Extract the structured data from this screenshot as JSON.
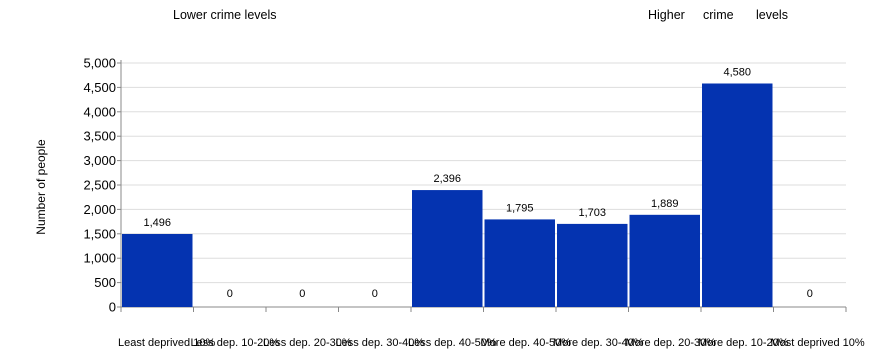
{
  "header": {
    "left_label": "Lower crime levels",
    "right_labels": [
      "Higher",
      "crime",
      "levels"
    ]
  },
  "chart_data": {
    "type": "bar",
    "ylabel": "Number of people",
    "xlabel": "",
    "ylim": [
      0,
      5000
    ],
    "yticks": [
      "0",
      "500",
      "1,000",
      "1,500",
      "2,000",
      "2,500",
      "3,000",
      "3,500",
      "4,000",
      "4,500",
      "5,000"
    ],
    "categories": [
      "Least deprived 10%",
      "Less dep. 10-20%",
      "Less dep. 20-30%",
      "Less dep. 30-40%",
      "Less dep. 40-50%",
      "More dep. 40-50%",
      "More dep. 30-40%",
      "More dep. 20-30%",
      "More dep. 10-20%",
      "Most deprived 10%"
    ],
    "values": [
      1496,
      0,
      0,
      0,
      2396,
      1795,
      1703,
      1889,
      4580,
      0
    ],
    "value_labels": [
      "1,496",
      "0",
      "0",
      "0",
      "2,396",
      "1,795",
      "1,703",
      "1,889",
      "4,580",
      "0"
    ],
    "grid": true,
    "colors": {
      "bar": "#0433b0",
      "grid": "#dddddd",
      "axis": "#888888"
    }
  }
}
